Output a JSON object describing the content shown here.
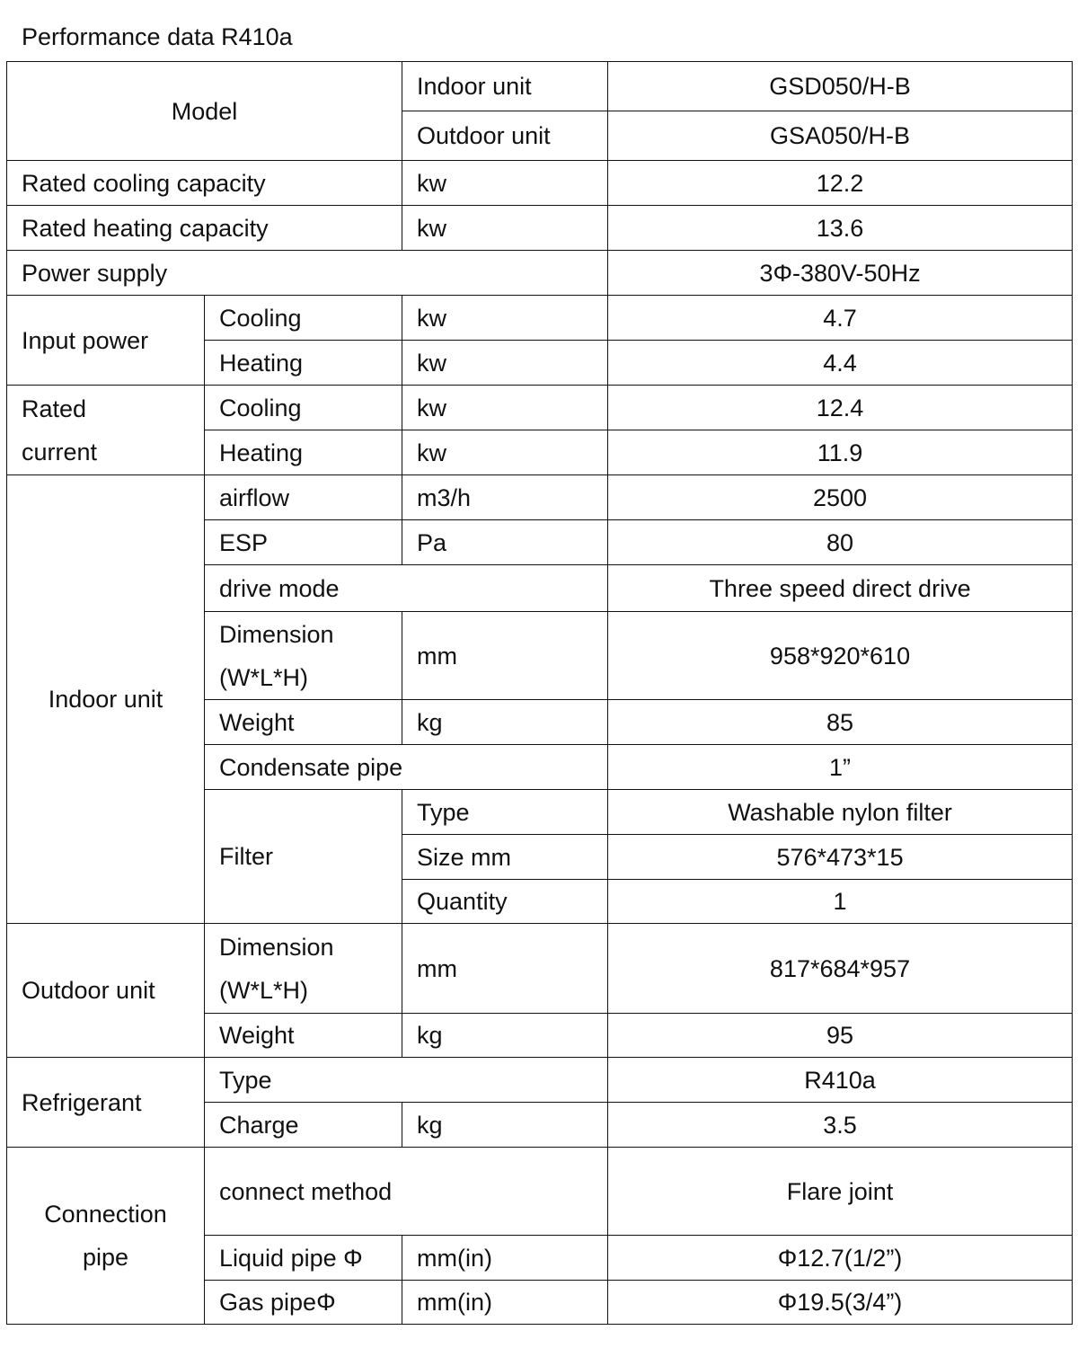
{
  "title": "Performance data R410a",
  "rows": [
    [
      "Model",
      "Indoor unit",
      "GSD050/H-B"
    ],
    [
      "Outdoor unit",
      "GSA050/H-B"
    ],
    [
      "Rated cooling capacity",
      "kw",
      "12.2"
    ],
    [
      "Rated heating capacity",
      "kw",
      "13.6"
    ],
    [
      "Power supply",
      "3Φ-380V-50Hz"
    ],
    [
      "Input power",
      "Cooling",
      "kw",
      "4.7"
    ],
    [
      "Heating",
      "kw",
      "4.4"
    ],
    [
      "Rated current",
      "Cooling",
      "kw",
      "12.4"
    ],
    [
      "Heating",
      "kw",
      "11.9"
    ],
    [
      "Indoor unit",
      "airflow",
      "m3/h",
      "2500"
    ],
    [
      "ESP",
      "Pa",
      "80"
    ],
    [
      "drive mode",
      "Three speed direct drive"
    ],
    [
      "Dimension (W*L*H)",
      "mm",
      "958*920*610"
    ],
    [
      "Weight",
      "kg",
      "85"
    ],
    [
      "Condensate pipe",
      "1”"
    ],
    [
      "Filter",
      "Type",
      "Washable nylon filter"
    ],
    [
      "Size mm",
      "576*473*15"
    ],
    [
      "Quantity",
      "1"
    ],
    [
      "Outdoor unit",
      "Dimension (W*L*H)",
      "mm",
      "817*684*957"
    ],
    [
      "Weight",
      "kg",
      "95"
    ],
    [
      "Refrigerant",
      "Type",
      "R410a"
    ],
    [
      "Charge",
      "kg",
      "3.5"
    ],
    [
      "Connection pipe",
      "connect method",
      "Flare joint"
    ],
    [
      "Liquid pipe Φ",
      "mm(in)",
      "Φ12.7(1/2”)"
    ],
    [
      "Gas pipeΦ",
      "mm(in)",
      "Φ19.5(3/4”)"
    ]
  ]
}
